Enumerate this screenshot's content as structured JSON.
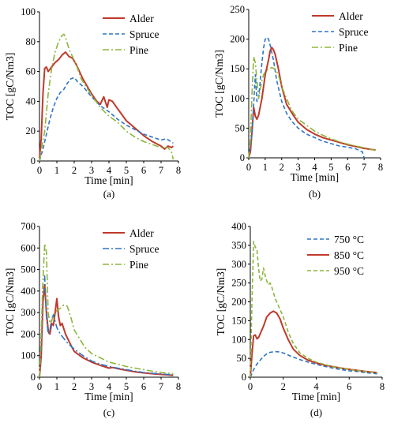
{
  "colors": {
    "red": "#C0392B",
    "blue": "#2E75C6",
    "green": "#8DB53C"
  },
  "chart_data": [
    {
      "type": "line",
      "panel_label": "(a)",
      "xlabel": "Time [min]",
      "ylabel": "TOC [gC/Nm3]",
      "xlim": [
        0,
        8
      ],
      "ylim": [
        0,
        100
      ],
      "xticks": [
        0,
        1,
        2,
        3,
        4,
        5,
        6,
        7,
        8
      ],
      "yticks": [
        0,
        20,
        40,
        60,
        80,
        100
      ],
      "legend_position": "top-right",
      "series": [
        {
          "name": "Alder",
          "color": "#C0392B",
          "dash": "solid",
          "width": 2,
          "x": [
            0,
            0.1,
            0.2,
            0.3,
            0.4,
            0.5,
            0.7,
            0.9,
            1.1,
            1.3,
            1.5,
            1.7,
            1.9,
            2.1,
            2.5,
            3.0,
            3.3,
            3.5,
            3.7,
            3.9,
            4.0,
            4.2,
            4.5,
            5.0,
            5.5,
            6.0,
            6.5,
            7.0,
            7.2,
            7.4,
            7.6,
            7.7
          ],
          "y": [
            2,
            15,
            45,
            62,
            63,
            60,
            63,
            66,
            68,
            71,
            73,
            70,
            69,
            65,
            55,
            45,
            40,
            38,
            43,
            36,
            41,
            40,
            35,
            27,
            22,
            17,
            13,
            10,
            8,
            10,
            9,
            10
          ]
        },
        {
          "name": "Spruce",
          "color": "#2E75C6",
          "dash": "dashed",
          "width": 1.6,
          "x": [
            0,
            0.2,
            0.4,
            0.6,
            0.8,
            1.0,
            1.2,
            1.4,
            1.6,
            1.8,
            2.0,
            2.2,
            2.5,
            3.0,
            3.5,
            4.0,
            4.5,
            5.0,
            5.5,
            6.0,
            6.5,
            7.0,
            7.3,
            7.7
          ],
          "y": [
            0,
            8,
            18,
            28,
            36,
            42,
            46,
            48,
            52,
            55,
            56,
            53,
            50,
            43,
            37,
            33,
            28,
            24,
            21,
            18,
            16,
            14,
            15,
            12
          ]
        },
        {
          "name": "Pine",
          "color": "#8DB53C",
          "dash": "dashdot",
          "width": 1.6,
          "x": [
            0,
            0.3,
            0.5,
            0.7,
            0.9,
            1.1,
            1.3,
            1.4,
            1.5,
            1.7,
            1.9,
            2.1,
            2.4,
            3.0,
            3.5,
            4.0,
            4.5,
            5.0,
            5.5,
            6.0,
            6.5,
            7.0,
            7.4,
            7.6,
            7.7
          ],
          "y": [
            0,
            20,
            45,
            62,
            73,
            80,
            84,
            85,
            83,
            75,
            70,
            65,
            55,
            44,
            36,
            30,
            26,
            20,
            16,
            13,
            11,
            9,
            9,
            6,
            1
          ]
        }
      ]
    },
    {
      "type": "line",
      "panel_label": "(b)",
      "xlabel": "Time [min]",
      "ylabel": "TOC [gC/Nm3]",
      "xlim": [
        0,
        8
      ],
      "ylim": [
        0,
        250
      ],
      "xticks": [
        0,
        1,
        2,
        3,
        4,
        5,
        6,
        7,
        8
      ],
      "yticks": [
        0,
        50,
        100,
        150,
        200,
        250
      ],
      "legend_position": "top-right",
      "series": [
        {
          "name": "Alder",
          "color": "#C0392B",
          "dash": "solid",
          "width": 2,
          "x": [
            0,
            0.1,
            0.2,
            0.3,
            0.4,
            0.5,
            0.6,
            0.8,
            1.0,
            1.2,
            1.3,
            1.4,
            1.5,
            1.6,
            1.8,
            2.0,
            2.3,
            2.7,
            3.0,
            3.5,
            4.0,
            4.5,
            5.0,
            5.5,
            6.0,
            6.5,
            7.0,
            7.5,
            7.7
          ],
          "y": [
            0,
            10,
            45,
            85,
            70,
            65,
            72,
            100,
            140,
            165,
            180,
            186,
            182,
            175,
            150,
            120,
            90,
            72,
            60,
            48,
            40,
            34,
            30,
            26,
            22,
            19,
            16,
            14,
            13
          ]
        },
        {
          "name": "Spruce",
          "color": "#2E75C6",
          "dash": "dashed",
          "width": 1.6,
          "x": [
            0,
            0.2,
            0.3,
            0.4,
            0.5,
            0.6,
            0.7,
            0.8,
            0.9,
            1.0,
            1.1,
            1.2,
            1.3,
            1.5,
            1.7,
            2.0,
            2.3,
            2.6,
            3.0,
            3.5,
            4.0,
            4.5,
            5.0,
            5.5,
            6.0,
            6.5,
            6.9,
            7.0
          ],
          "y": [
            0,
            40,
            90,
            140,
            95,
            100,
            130,
            160,
            185,
            200,
            203,
            200,
            190,
            165,
            130,
            95,
            75,
            62,
            50,
            40,
            34,
            28,
            24,
            20,
            18,
            15,
            10,
            0
          ]
        },
        {
          "name": "Pine",
          "color": "#8DB53C",
          "dash": "dashdot",
          "width": 1.6,
          "x": [
            0,
            0.1,
            0.2,
            0.3,
            0.4,
            0.5,
            0.6,
            0.7,
            0.8,
            0.9,
            1.0,
            1.2,
            1.4,
            1.6,
            1.8,
            2.0,
            2.3,
            2.6,
            3.0,
            3.5,
            4.0,
            4.5,
            5.0,
            5.5,
            6.0,
            6.5,
            7.0,
            7.5,
            7.7
          ],
          "y": [
            0,
            30,
            110,
            170,
            160,
            130,
            100,
            115,
            130,
            140,
            145,
            150,
            152,
            150,
            140,
            120,
            100,
            80,
            65,
            55,
            45,
            38,
            32,
            27,
            23,
            20,
            17,
            14,
            12
          ]
        }
      ]
    },
    {
      "type": "line",
      "panel_label": "(c)",
      "xlabel": "Time [min]",
      "ylabel": "TOC [gC/Nm3]",
      "xlim": [
        0,
        8
      ],
      "ylim": [
        0,
        700
      ],
      "xticks": [
        0,
        1,
        2,
        3,
        4,
        5,
        6,
        7,
        8
      ],
      "yticks": [
        0,
        100,
        200,
        300,
        400,
        500,
        600,
        700
      ],
      "legend_position": "top-right",
      "series": [
        {
          "name": "Alder",
          "color": "#C0392B",
          "dash": "solid",
          "width": 2,
          "x": [
            0,
            0.1,
            0.2,
            0.3,
            0.4,
            0.5,
            0.6,
            0.7,
            0.8,
            0.9,
            1.0,
            1.1,
            1.2,
            1.3,
            1.5,
            1.8,
            2.0,
            2.5,
            3.0,
            3.5,
            4.0,
            4.2,
            4.5,
            5.0,
            5.5,
            6.0,
            6.5,
            7.0,
            7.5,
            7.7
          ],
          "y": [
            0,
            100,
            350,
            430,
            300,
            220,
            200,
            250,
            240,
            300,
            365,
            280,
            240,
            250,
            200,
            150,
            120,
            90,
            70,
            55,
            42,
            45,
            40,
            32,
            25,
            20,
            16,
            13,
            10,
            8
          ]
        },
        {
          "name": "Spruce",
          "color": "#2E75C6",
          "dash": "dashdot",
          "width": 1.6,
          "x": [
            0,
            0.1,
            0.2,
            0.3,
            0.4,
            0.5,
            0.6,
            0.7,
            0.8,
            0.9,
            1.0,
            1.2,
            1.4,
            1.6,
            2.0,
            2.5,
            3.0,
            3.5,
            4.0,
            4.5,
            5.0,
            5.5,
            6.0,
            6.5,
            7.0,
            7.5,
            7.7
          ],
          "y": [
            0,
            150,
            450,
            470,
            280,
            200,
            220,
            270,
            290,
            260,
            230,
            200,
            180,
            160,
            130,
            100,
            75,
            60,
            50,
            42,
            35,
            28,
            22,
            18,
            15,
            12,
            10
          ]
        },
        {
          "name": "Pine",
          "color": "#8DB53C",
          "dash": "dashdot",
          "width": 1.6,
          "x": [
            0,
            0.1,
            0.2,
            0.3,
            0.4,
            0.5,
            0.6,
            0.7,
            0.8,
            0.9,
            1.0,
            1.2,
            1.4,
            1.6,
            1.8,
            2.0,
            2.3,
            2.6,
            3.0,
            3.5,
            4.0,
            4.5,
            5.0,
            5.5,
            6.0,
            6.5,
            7.0,
            7.5,
            7.7
          ],
          "y": [
            0,
            200,
            450,
            620,
            580,
            300,
            250,
            260,
            290,
            300,
            310,
            320,
            335,
            330,
            280,
            220,
            180,
            140,
            110,
            90,
            70,
            60,
            50,
            42,
            35,
            28,
            22,
            18,
            15
          ]
        }
      ]
    },
    {
      "type": "line",
      "panel_label": "(d)",
      "xlabel": "Time [min]",
      "ylabel": "TOC [gC/Nm3]",
      "xlim": [
        0,
        8
      ],
      "ylim": [
        0,
        400
      ],
      "xticks": [
        0,
        2,
        4,
        6,
        8
      ],
      "yticks": [
        0,
        50,
        100,
        150,
        200,
        250,
        300,
        350,
        400
      ],
      "legend_position": "top-right",
      "series": [
        {
          "name": "750 °C",
          "color": "#2E75C6",
          "dash": "dashed",
          "width": 1.6,
          "x": [
            0,
            0.2,
            0.4,
            0.6,
            0.8,
            1.0,
            1.2,
            1.5,
            1.8,
            2.0,
            2.5,
            3.0,
            3.5,
            4.0,
            4.5,
            5.0,
            5.5,
            6.0,
            6.5,
            7.0,
            7.5,
            7.7
          ],
          "y": [
            0,
            20,
            35,
            45,
            55,
            62,
            66,
            68,
            67,
            64,
            55,
            47,
            40,
            34,
            29,
            24,
            20,
            17,
            15,
            12,
            10,
            9
          ]
        },
        {
          "name": "850 °C",
          "color": "#C0392B",
          "dash": "solid",
          "width": 2,
          "x": [
            0,
            0.1,
            0.2,
            0.3,
            0.4,
            0.5,
            0.6,
            0.8,
            1.0,
            1.2,
            1.4,
            1.6,
            1.8,
            2.0,
            2.3,
            2.6,
            3.0,
            3.5,
            4.0,
            4.5,
            5.0,
            5.5,
            6.0,
            6.5,
            7.0,
            7.5,
            7.7
          ],
          "y": [
            0,
            60,
            110,
            112,
            102,
            105,
            115,
            135,
            160,
            170,
            175,
            170,
            155,
            130,
            100,
            75,
            58,
            45,
            38,
            32,
            28,
            24,
            21,
            18,
            15,
            13,
            12
          ]
        },
        {
          "name": "950 °C",
          "color": "#8DB53C",
          "dash": "dashed",
          "width": 1.6,
          "x": [
            0,
            0.1,
            0.2,
            0.3,
            0.4,
            0.5,
            0.6,
            0.7,
            0.8,
            0.9,
            1.0,
            1.1,
            1.2,
            1.3,
            1.5,
            1.7,
            2.0,
            2.3,
            2.6,
            3.0,
            3.5,
            4.0,
            4.5,
            5.0,
            5.5,
            6.0,
            6.5,
            7.0,
            7.5,
            7.7
          ],
          "y": [
            0,
            200,
            360,
            345,
            340,
            290,
            255,
            260,
            290,
            270,
            255,
            245,
            250,
            240,
            210,
            190,
            160,
            120,
            90,
            65,
            50,
            40,
            34,
            28,
            24,
            21,
            18,
            15,
            13,
            12
          ]
        }
      ]
    }
  ]
}
